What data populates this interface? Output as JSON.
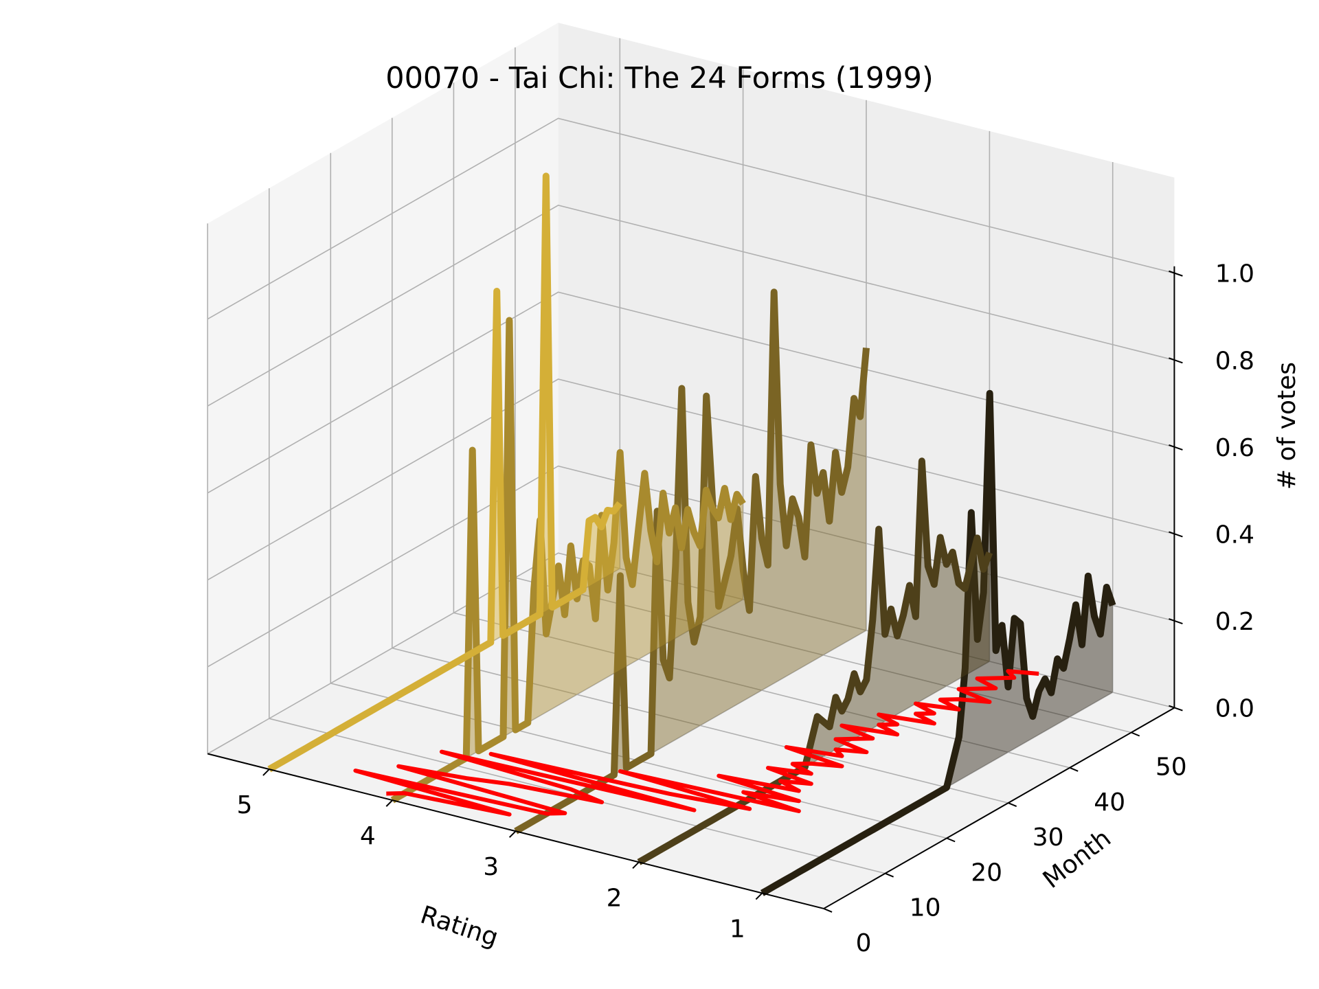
{
  "chart_data": {
    "type": "line",
    "title": "00070 - Tai Chi: The 24 Forms (1999)",
    "xlabel": "Rating",
    "ylabel": "Month",
    "zlabel": "# of votes",
    "x_ticks": [
      "5",
      "4",
      "3",
      "2",
      "1"
    ],
    "y_ticks": [
      "0",
      "10",
      "20",
      "30",
      "40",
      "50"
    ],
    "z_ticks": [
      "0.0",
      "0.2",
      "0.4",
      "0.6",
      "0.8",
      "1.0"
    ],
    "xlim": [
      0.5,
      5.5
    ],
    "ylim": [
      0,
      57
    ],
    "zlim": [
      0,
      1
    ],
    "grid": true,
    "months": [
      1,
      2,
      3,
      4,
      5,
      6,
      7,
      8,
      9,
      10,
      11,
      12,
      13,
      14,
      15,
      16,
      17,
      18,
      19,
      20,
      21,
      22,
      23,
      24,
      25,
      26,
      27,
      28,
      29,
      30,
      31,
      32,
      33,
      34,
      35,
      36,
      37,
      38,
      39,
      40,
      41,
      42,
      43,
      44,
      45,
      46,
      47,
      48,
      49,
      50,
      51,
      52,
      53,
      54,
      55,
      56,
      57
    ],
    "series": [
      {
        "rating": 5,
        "color": "#d4af37",
        "values": [
          0,
          0,
          0,
          0,
          0,
          0,
          0,
          0,
          0,
          0,
          0,
          0,
          0,
          0,
          0,
          0,
          0,
          0,
          0,
          0,
          0,
          0,
          0,
          0,
          0,
          0,
          0,
          0,
          0,
          0,
          0,
          0,
          0,
          0,
          0,
          0,
          0.8,
          0,
          0,
          0,
          0,
          0,
          0,
          0,
          1,
          0,
          0,
          0,
          0,
          0,
          0,
          0.15,
          0.15,
          0.12,
          0.15,
          0.14,
          0.15
        ]
      },
      {
        "rating": 4,
        "color": "#a88a2e",
        "values": [
          0,
          0,
          0,
          0,
          0,
          0,
          0,
          0,
          0,
          0,
          0,
          0,
          0.7,
          0,
          0,
          0,
          0,
          0,
          0.95,
          0,
          0,
          0,
          0.3,
          0.45,
          0.18,
          0.25,
          0.32,
          0.2,
          0.35,
          0.22,
          0.3,
          0.28,
          0.15,
          0.38,
          0.2,
          0.3,
          0.5,
          0.25,
          0.18,
          0.3,
          0.42,
          0.28,
          0.2,
          0.35,
          0.25,
          0.3,
          0.2,
          0.28,
          0.22,
          0.18,
          0.3,
          0.25,
          0.22,
          0.28,
          0.2,
          0.25,
          0.22
        ]
      },
      {
        "rating": 3,
        "color": "#7a6424",
        "values": [
          0,
          0,
          0,
          0,
          0,
          0,
          0,
          0,
          0,
          0,
          0,
          0,
          0,
          0,
          0,
          0,
          0.45,
          0,
          0,
          0,
          0,
          0,
          0.55,
          0.2,
          0.15,
          0.4,
          0.8,
          0.3,
          0.2,
          0.25,
          0.75,
          0.5,
          0.25,
          0.3,
          0.35,
          0.45,
          0.3,
          0.2,
          0.5,
          0.35,
          0.28,
          0.9,
          0.45,
          0.3,
          0.4,
          0.35,
          0.25,
          0.5,
          0.38,
          0.42,
          0.3,
          0.45,
          0.35,
          0.4,
          0.55,
          0.5,
          0.65
        ]
      },
      {
        "rating": 2,
        "color": "#4e401a",
        "values": [
          0,
          0,
          0,
          0,
          0,
          0,
          0,
          0,
          0,
          0,
          0,
          0,
          0,
          0,
          0,
          0,
          0,
          0,
          0,
          0,
          0,
          0,
          0,
          0,
          0,
          0,
          0,
          0.05,
          0.1,
          0.08,
          0.06,
          0.12,
          0.08,
          0.1,
          0.15,
          0.1,
          0.12,
          0.25,
          0.45,
          0.2,
          0.25,
          0.18,
          0.22,
          0.28,
          0.2,
          0.55,
          0.3,
          0.25,
          0.35,
          0.28,
          0.3,
          0.22,
          0.2,
          0.25,
          0.3,
          0.22,
          0.25
        ]
      },
      {
        "rating": 1,
        "color": "#272010",
        "values": [
          0,
          0,
          0,
          0,
          0,
          0,
          0,
          0,
          0,
          0,
          0,
          0,
          0,
          0,
          0,
          0,
          0,
          0,
          0,
          0,
          0,
          0,
          0,
          0,
          0,
          0,
          0,
          0,
          0,
          0,
          0.05,
          0.1,
          0.25,
          0.6,
          0.3,
          0.4,
          0.85,
          0.25,
          0.3,
          0.15,
          0.3,
          0.28,
          0.1,
          0.05,
          0.1,
          0.12,
          0.08,
          0.15,
          0.12,
          0.18,
          0.25,
          0.15,
          0.3,
          0.2,
          0.15,
          0.25,
          0.2
        ]
      }
    ],
    "overlay": {
      "color": "#ff0000",
      "description_values": [
        4.1,
        4.0,
        3.2,
        4.5,
        3.0,
        2.9,
        4.3,
        3.8,
        3.5,
        2.8,
        3.1,
        4.2,
        2.2,
        3.9,
        2.5,
        1.9,
        3.0,
        1.6,
        2.1,
        1.7,
        2.4,
        1.8,
        2.0,
        1.8,
        2.2,
        1.9,
        2.1,
        2.0,
        1.8,
        2.3,
        1.9,
        2.0,
        1.8,
        2.1,
        2.0,
        1.9,
        2.2,
        1.8,
        2.0,
        1.9,
        2.1,
        1.7,
        1.9,
        1.8,
        2.0,
        1.7,
        1.9,
        1.8,
        1.6,
        1.9,
        1.8,
        1.7,
        1.9,
        1.8,
        1.7,
        1.8,
        1.6
      ]
    }
  }
}
